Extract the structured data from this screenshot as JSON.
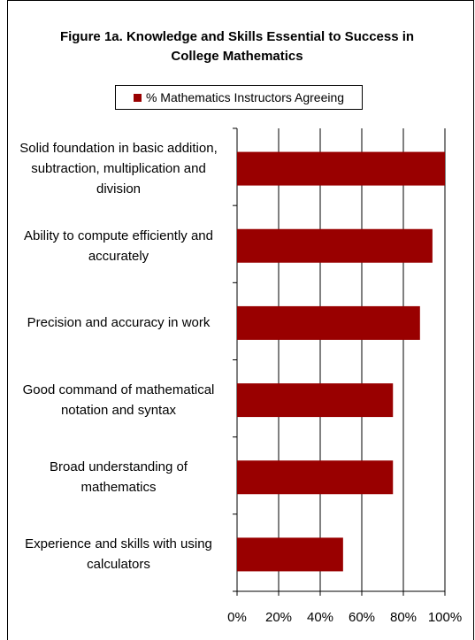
{
  "chart_data": {
    "type": "barh",
    "title": "Figure 1a. Knowledge and Skills Essential to Success in College Mathematics",
    "categories": [
      "Solid foundation in basic addition, subtraction, multiplication and division",
      "Ability to compute efficiently and accurately",
      "Precision and accuracy in work",
      "Good command of mathematical notation and syntax",
      "Broad understanding of mathematics",
      "Experience and skills with using calculators"
    ],
    "series": [
      {
        "name": "% Mathematics Instructors Agreeing",
        "color": "#990000",
        "values": [
          100,
          94,
          88,
          75,
          75,
          51
        ]
      }
    ],
    "xlim": [
      0,
      100
    ],
    "xticks": [
      {
        "value": 0,
        "label": "0%"
      },
      {
        "value": 20,
        "label": "20%"
      },
      {
        "value": 40,
        "label": "40%"
      },
      {
        "value": 60,
        "label": "60%"
      },
      {
        "value": 80,
        "label": "80%"
      },
      {
        "value": 100,
        "label": "100%"
      }
    ],
    "grid": true,
    "legend": "top"
  }
}
